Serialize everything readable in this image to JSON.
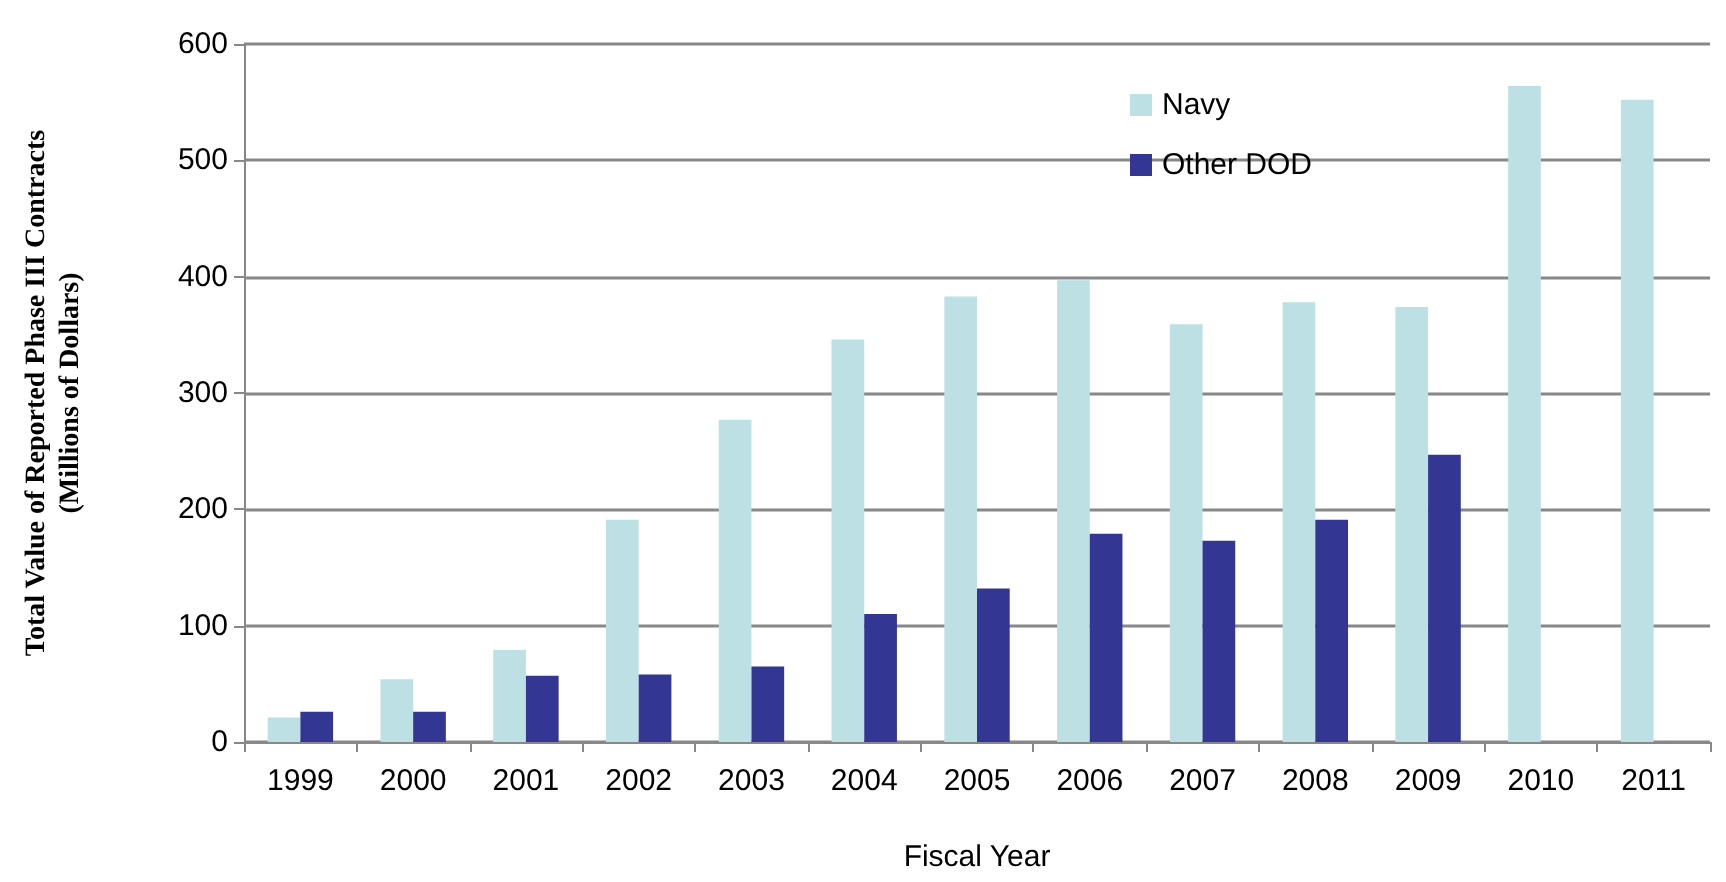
{
  "chart_data": {
    "type": "bar",
    "xlabel": "Fiscal Year",
    "ylabel": "Total Value of Reported Phase III Contracts\n(Millions of Dollars)",
    "categories": [
      "1999",
      "2000",
      "2001",
      "2002",
      "2003",
      "2004",
      "2005",
      "2006",
      "2007",
      "2008",
      "2009",
      "2010",
      "2011"
    ],
    "series": [
      {
        "name": "Navy",
        "color": "#bde0e4",
        "values": [
          21,
          54,
          79,
          191,
          277,
          346,
          383,
          397,
          359,
          378,
          374,
          564,
          552
        ]
      },
      {
        "name": "Other DOD",
        "color": "#343694",
        "values": [
          26,
          26,
          57,
          58,
          65,
          110,
          132,
          179,
          173,
          191,
          247,
          null,
          null
        ]
      }
    ],
    "ylim": [
      0,
      600
    ],
    "yticks": [
      0,
      100,
      200,
      300,
      400,
      500,
      600
    ],
    "grid": "y",
    "legend": "top right"
  }
}
